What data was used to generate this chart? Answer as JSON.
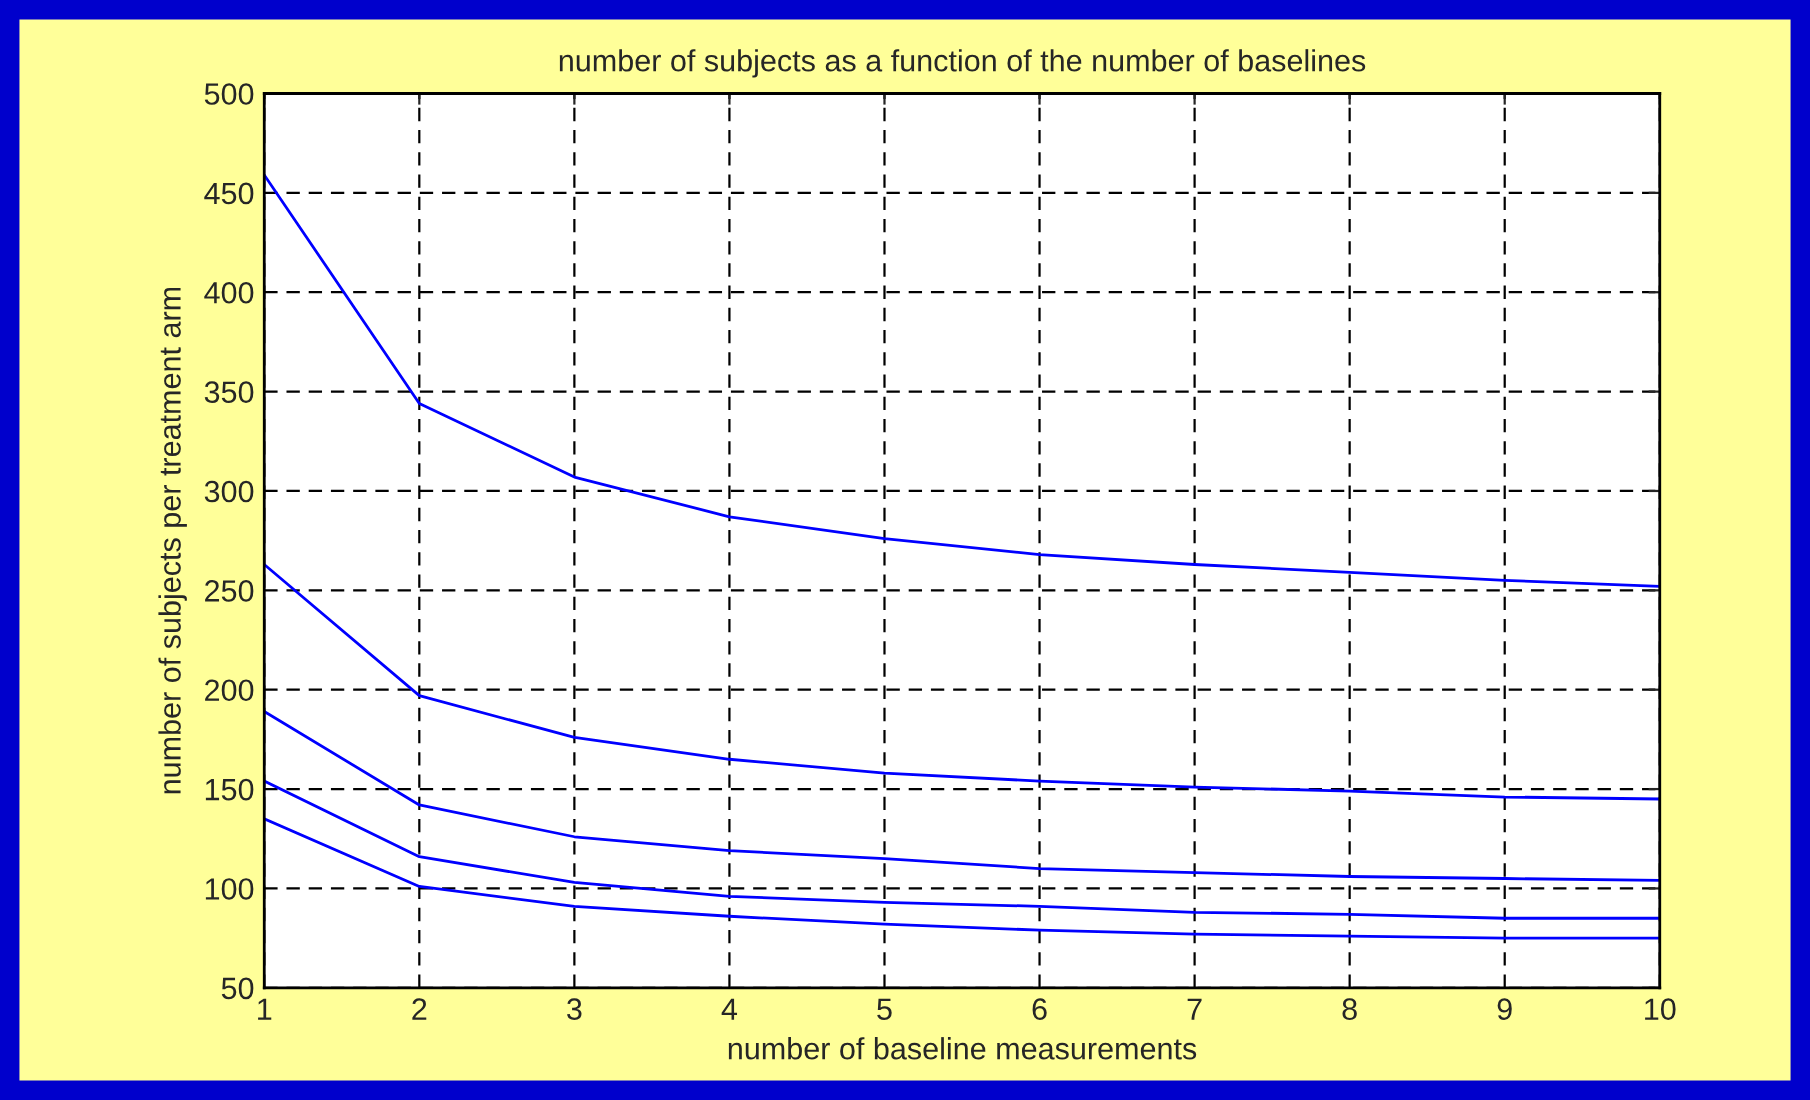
{
  "chart_data": {
    "type": "line",
    "title": "number of subjects as a function of the number of baselines",
    "xlabel": "number of baseline measurements",
    "ylabel": "number of subjects per treatment arm",
    "x": [
      1,
      2,
      3,
      4,
      5,
      6,
      7,
      8,
      9,
      10
    ],
    "series": [
      {
        "color": "#0000ff",
        "values": [
          459,
          344,
          307,
          287,
          276,
          268,
          263,
          259,
          255,
          252
        ]
      },
      {
        "color": "#0000ff",
        "values": [
          263,
          197,
          176,
          165,
          158,
          154,
          151,
          149,
          146,
          145
        ]
      },
      {
        "color": "#0000ff",
        "values": [
          189,
          142,
          126,
          119,
          115,
          110,
          108,
          106,
          105,
          104
        ]
      },
      {
        "color": "#0000ff",
        "values": [
          154,
          116,
          103,
          96,
          93,
          91,
          88,
          87,
          85,
          85
        ]
      },
      {
        "color": "#0000ff",
        "values": [
          135,
          101,
          91,
          86,
          82,
          79,
          77,
          76,
          75,
          75
        ]
      }
    ],
    "xlim": [
      1,
      10
    ],
    "xticks": [
      1,
      2,
      3,
      4,
      5,
      6,
      7,
      8,
      9,
      10
    ],
    "ylim": [
      50,
      500
    ],
    "yticks": [
      50,
      100,
      150,
      200,
      250,
      300,
      350,
      400,
      450,
      500
    ],
    "grid": true,
    "line_style": "solid",
    "marker": "none"
  }
}
